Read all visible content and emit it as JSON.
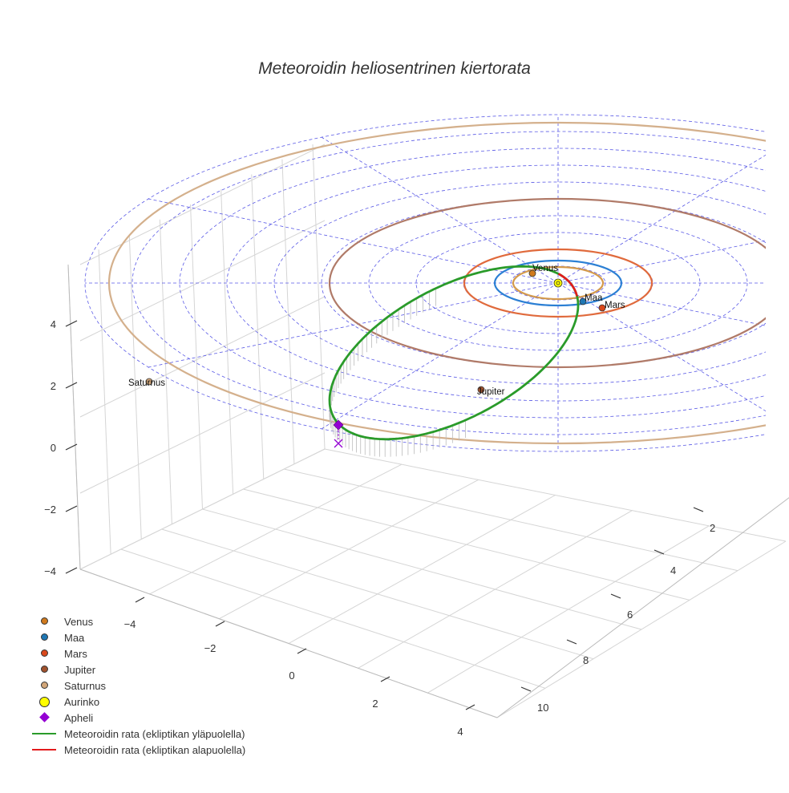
{
  "title": "Meteoroidin heliosentrinen kiertorata",
  "chart_data": {
    "type": "3d-line",
    "title": "Meteoroidin heliosentrinen kiertorata",
    "axes": {
      "x_ticks": [
        "−4",
        "−2",
        "0",
        "2",
        "4"
      ],
      "y_ticks": [
        "2",
        "4",
        "6",
        "8",
        "10"
      ],
      "z_ticks": [
        "−4",
        "−2",
        "0",
        "2",
        "4"
      ]
    },
    "planets": [
      {
        "name": "Venus",
        "color": "#d07a1e",
        "orbit_color": "#d49a4c"
      },
      {
        "name": "Maa",
        "color": "#1f77b4",
        "orbit_color": "#2b7fd4"
      },
      {
        "name": "Mars",
        "color": "#d9481b",
        "orbit_color": "#e06a3c"
      },
      {
        "name": "Jupiter",
        "color": "#a0522d",
        "orbit_color": "#b07a68"
      },
      {
        "name": "Saturnus",
        "color": "#d2a679",
        "orbit_color": "#d4b08c"
      }
    ],
    "sun": {
      "name": "Aurinko",
      "color": "#ffff00"
    },
    "aphelion": {
      "name": "Apheli",
      "color": "#9400d3"
    },
    "series": [
      {
        "name": "Meteoroidin rata (ekliptikan yläpuolella)",
        "color": "#2a9b2a"
      },
      {
        "name": "Meteoroidin rata (ekliptikan alapuolella)",
        "color": "#e31a1c"
      }
    ],
    "grid": true,
    "legend": "bottom-left"
  },
  "legend": [
    {
      "label": "Venus",
      "kind": "dot",
      "color": "#d07a1e"
    },
    {
      "label": "Maa",
      "kind": "dot",
      "color": "#1f77b4"
    },
    {
      "label": "Mars",
      "kind": "dot",
      "color": "#d9481b"
    },
    {
      "label": "Jupiter",
      "kind": "dot",
      "color": "#a0522d"
    },
    {
      "label": "Saturnus",
      "kind": "dot",
      "color": "#d2a679"
    },
    {
      "label": "Aurinko",
      "kind": "bigdot",
      "color": "#ffff00"
    },
    {
      "label": "Apheli",
      "kind": "diamond",
      "color": "#9400d3"
    },
    {
      "label": "Meteoroidin rata (ekliptikan yläpuolella)",
      "kind": "line",
      "color": "#2a9b2a"
    },
    {
      "label": "Meteoroidin rata (ekliptikan alapuolella)",
      "kind": "line",
      "color": "#e31a1c"
    }
  ]
}
